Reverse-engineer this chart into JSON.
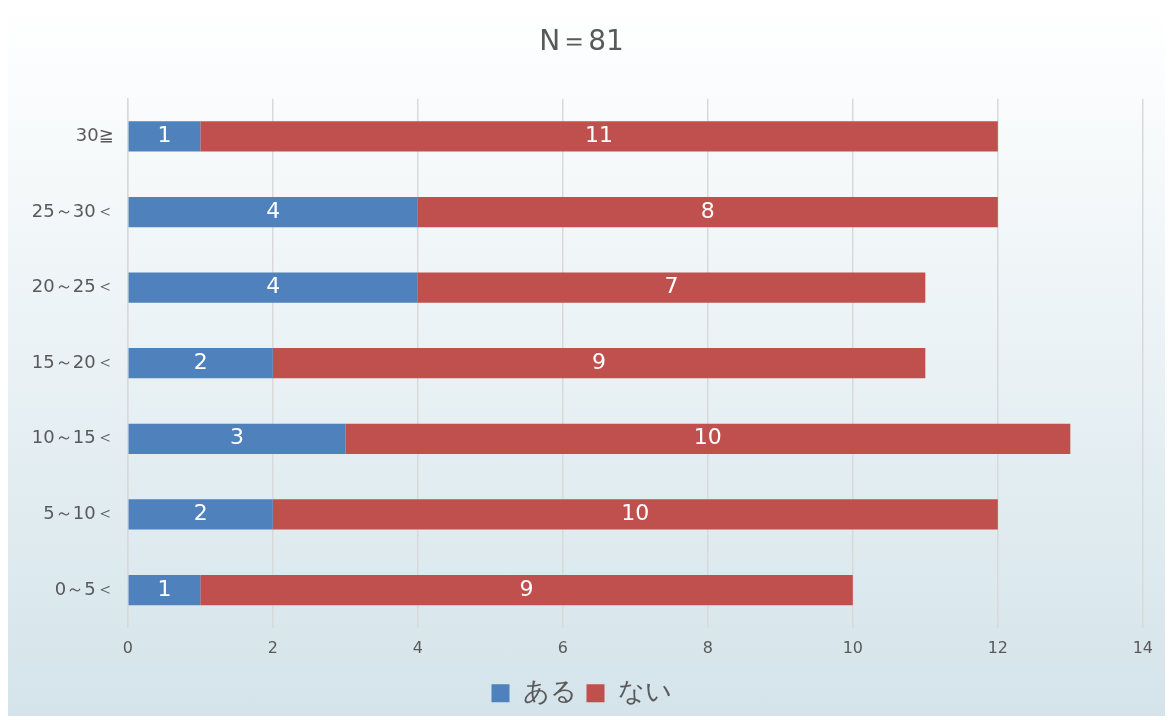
{
  "chart_data": {
    "type": "bar",
    "orientation": "horizontal",
    "stacked": true,
    "title": "N＝81",
    "categories": [
      "30≧",
      "25～30＜",
      "20～25＜",
      "15～20＜",
      "10～15＜",
      "5～10＜",
      "0～5＜"
    ],
    "series": [
      {
        "name": "ある",
        "color": "#4f81bd",
        "values": [
          1,
          4,
          4,
          2,
          3,
          2,
          1
        ]
      },
      {
        "name": "ない",
        "color": "#c0504d",
        "values": [
          11,
          8,
          7,
          9,
          10,
          10,
          9
        ]
      }
    ],
    "xlim": [
      0,
      14
    ],
    "xticks": [
      0,
      2,
      4,
      6,
      8,
      10,
      12,
      14
    ],
    "grid": "x",
    "legend": "bottom",
    "data_labels": true
  }
}
